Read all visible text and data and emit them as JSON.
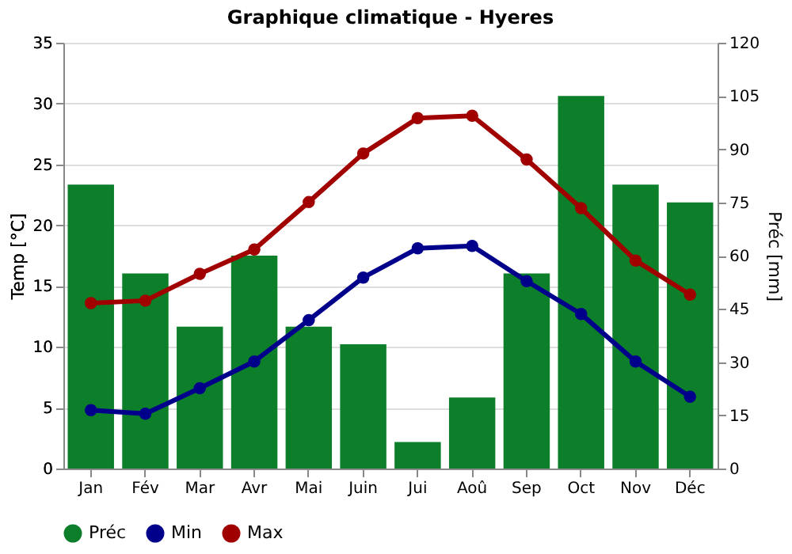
{
  "chart_data": {
    "type": "bar",
    "title": "Graphique climatique - Hyeres",
    "ylabel": "Temp [°C]",
    "y2label": "Préc [mm]",
    "categories": [
      "Jan",
      "Fév",
      "Mar",
      "Avr",
      "Mai",
      "Juin",
      "Jui",
      "Aoû",
      "Sep",
      "Oct",
      "Nov",
      "Déc"
    ],
    "series": [
      {
        "name": "Préc",
        "axis": "y2",
        "color": "#0d7f2b",
        "values": [
          80,
          55,
          40,
          60,
          40,
          35,
          7.5,
          20,
          55,
          105,
          80,
          75
        ]
      },
      {
        "name": "Min",
        "type": "line",
        "color": "#00008b",
        "values": [
          4.8,
          4.5,
          6.6,
          8.8,
          12.2,
          15.7,
          18.1,
          18.3,
          15.4,
          12.7,
          8.8,
          5.9
        ]
      },
      {
        "name": "Max",
        "type": "line",
        "color": "#a00000",
        "values": [
          13.6,
          13.8,
          16.0,
          18.0,
          21.9,
          25.9,
          28.8,
          29.0,
          25.4,
          21.4,
          17.1,
          14.3
        ]
      }
    ],
    "ylim": [
      0,
      35
    ],
    "yticks": [
      0,
      5,
      10,
      15,
      20,
      25,
      30,
      35
    ],
    "y2lim": [
      0,
      120
    ],
    "y2ticks": [
      0,
      15,
      30,
      45,
      60,
      75,
      90,
      105,
      120
    ],
    "grid": "y",
    "legend": "bottom left",
    "marker": "circle",
    "line_style": "solid"
  }
}
